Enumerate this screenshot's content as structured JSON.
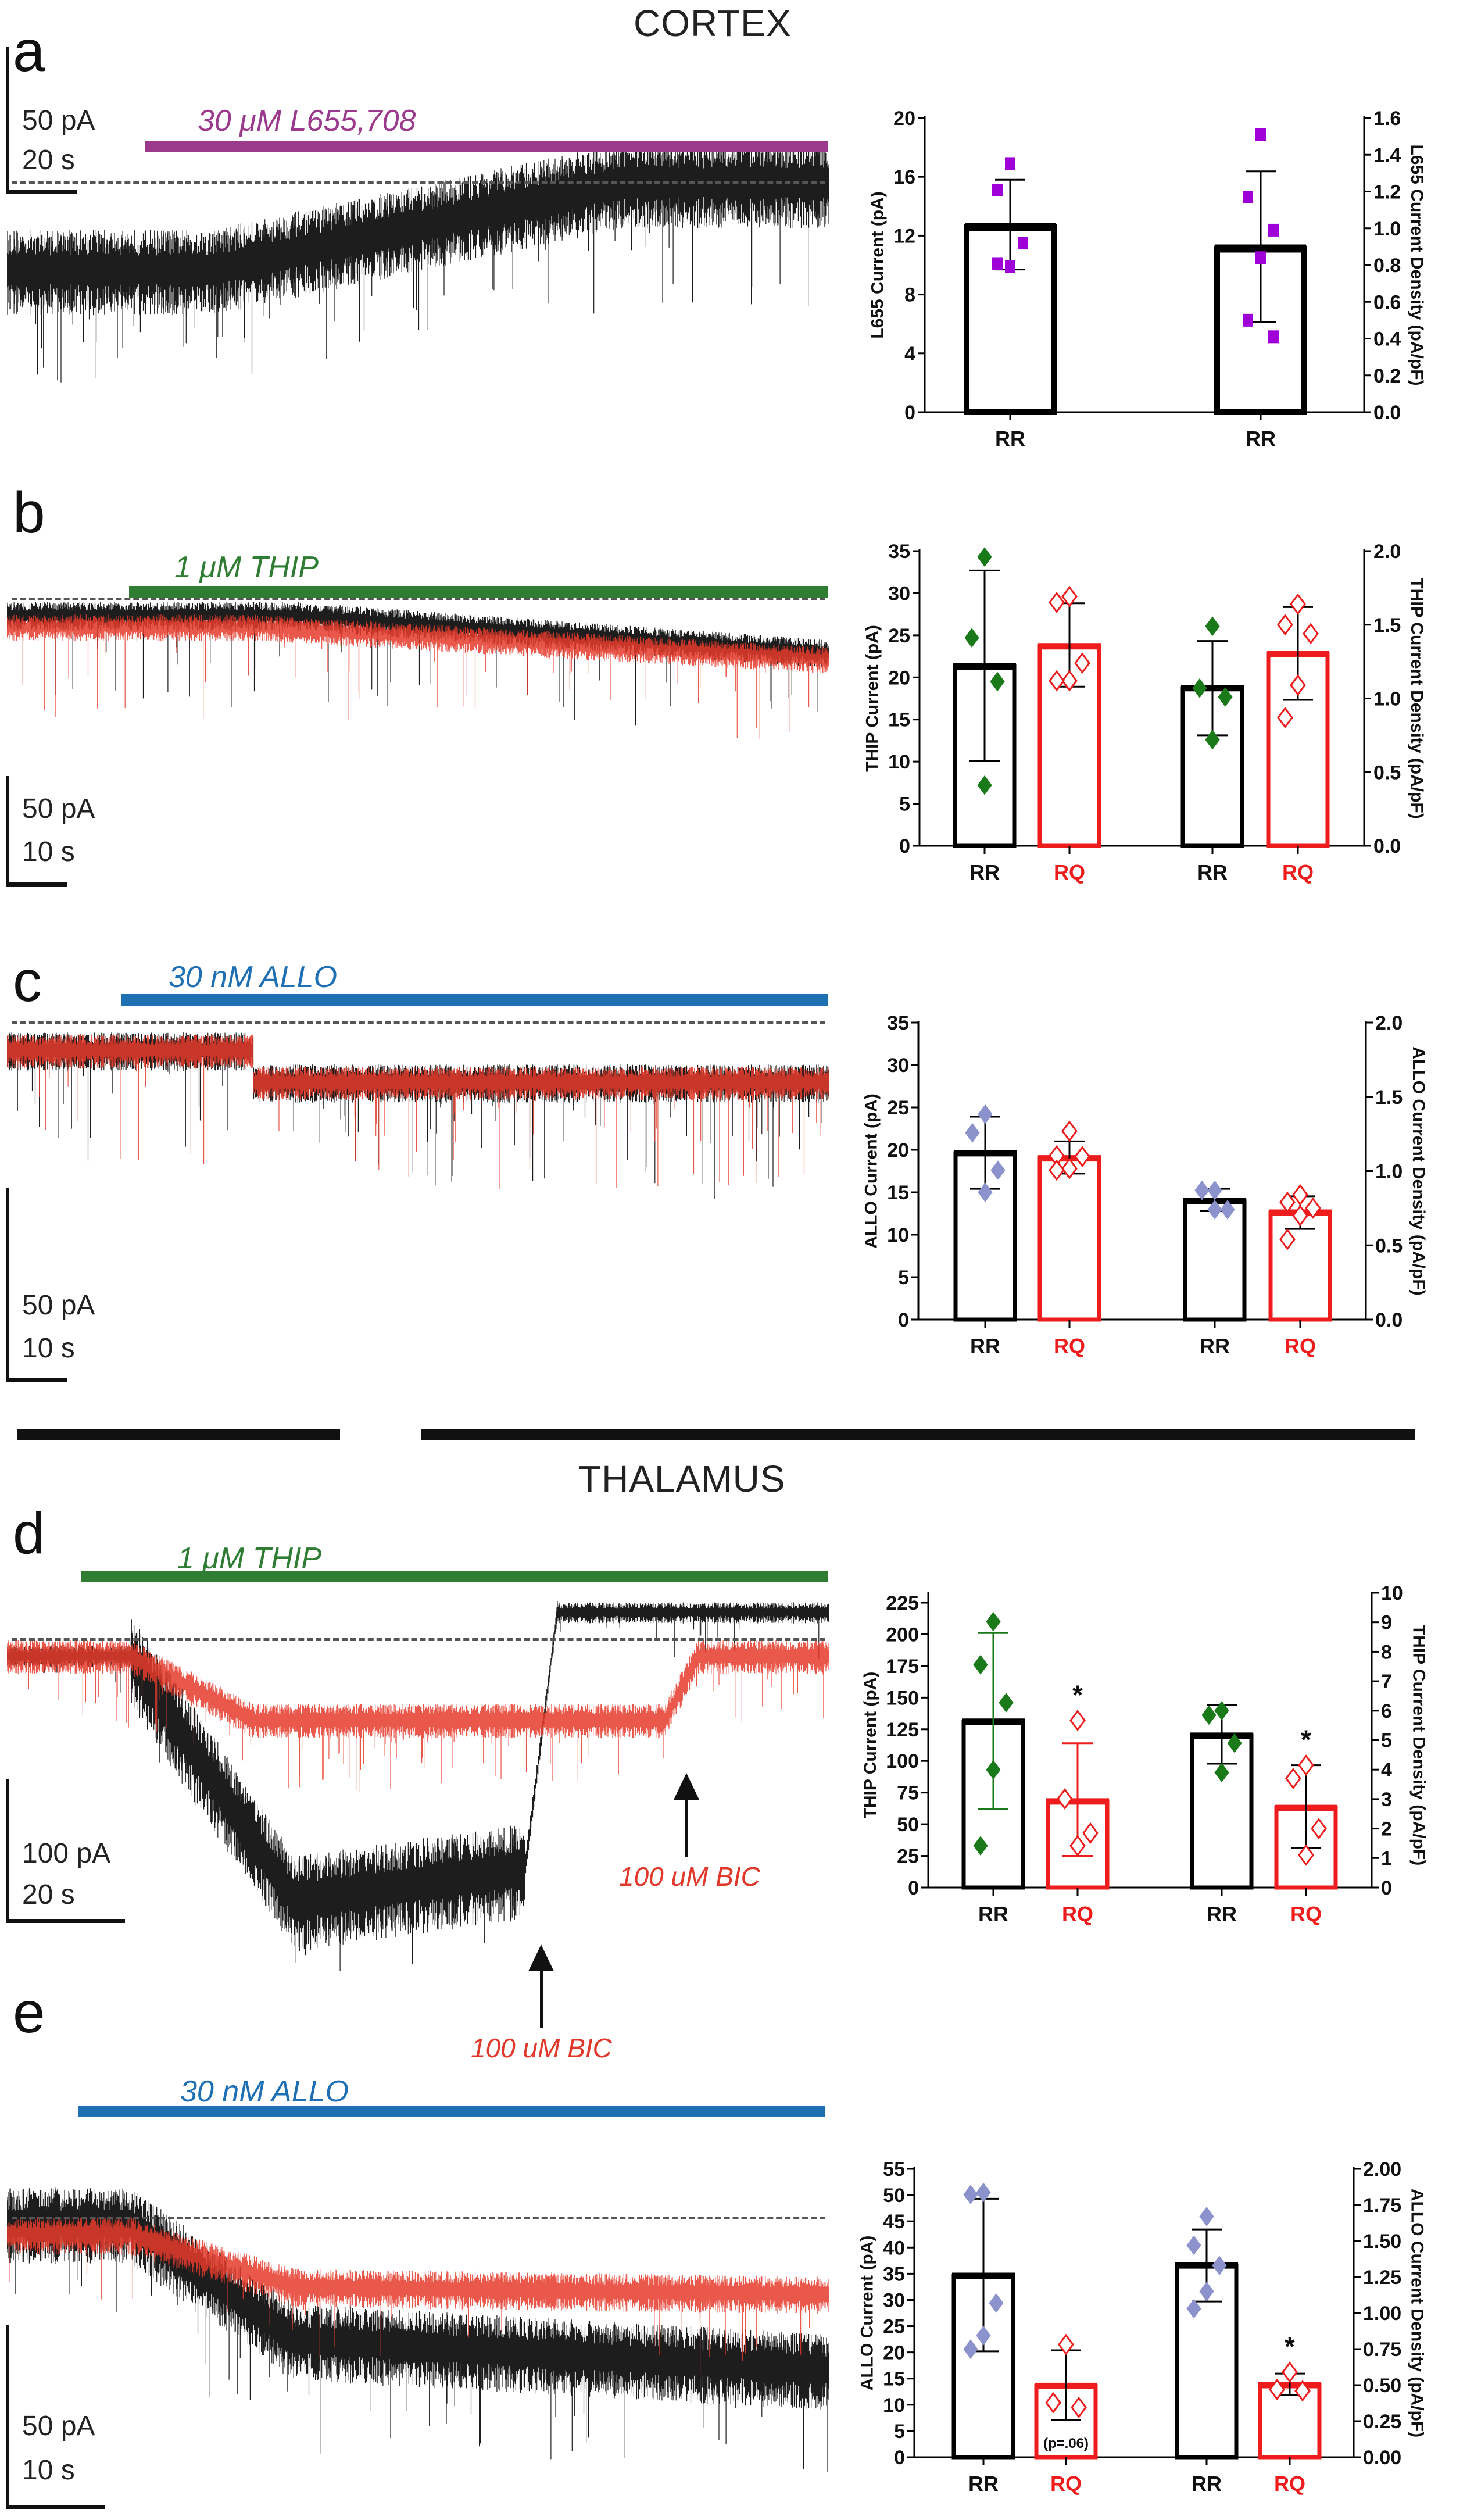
{
  "figure": {
    "sections": [
      {
        "title": "CORTEX"
      },
      {
        "title": "THALAMUS"
      }
    ],
    "traces": [
      {
        "letter": "a",
        "drug": "30 μM L655,708",
        "drug_color": "#9b3a8c",
        "scale_current": "50 pA",
        "scale_time": "20 s",
        "series_colors": [
          "#111111"
        ]
      },
      {
        "letter": "b",
        "drug": "1 μM THIP",
        "drug_color": "#2e7d32",
        "scale_current": "50 pA",
        "scale_time": "10 s",
        "series_colors": [
          "#111111",
          "#e53b2c"
        ]
      },
      {
        "letter": "c",
        "drug": "30 nM ALLO",
        "drug_color": "#1f6fb4",
        "scale_current": "50 pA",
        "scale_time": "10 s",
        "series_colors": [
          "#111111",
          "#e53b2c"
        ]
      },
      {
        "letter": "d",
        "drug": "1 μM THIP",
        "drug_color": "#2e7d32",
        "scale_current": "100 pA",
        "scale_time": "20 s",
        "series_colors": [
          "#111111",
          "#e53b2c"
        ],
        "annotations": [
          "100 uM BIC",
          "100 uM BIC"
        ]
      },
      {
        "letter": "e",
        "drug": "30 nM ALLO",
        "drug_color": "#1f6fb4",
        "scale_current": "50 pA",
        "scale_time": "10 s",
        "series_colors": [
          "#111111",
          "#e53b2c"
        ]
      }
    ]
  },
  "chart_data": [
    {
      "panel": "a",
      "type": "bar",
      "ylabel": "L655 Current (pA)",
      "y2label": "L655 Current Density (pA/pF)",
      "ylim": [
        0,
        20
      ],
      "yticks": [
        0,
        4,
        8,
        12,
        16,
        20
      ],
      "y2lim": [
        0,
        1.6
      ],
      "y2ticks": [
        "0.0",
        "0.2",
        "0.4",
        "0.6",
        "0.8",
        "1.0",
        "1.2",
        "1.4",
        "1.6"
      ],
      "categories": [
        "RR",
        "RR"
      ],
      "bars": [
        {
          "label": "RR",
          "axis": "left",
          "mean": 12.6,
          "err": [
            9.7,
            15.8
          ],
          "points": [
            16.9,
            15.1,
            11.5,
            9.9,
            10.1
          ],
          "color": "#000000",
          "marker": "square",
          "marker_color": "#a000d8",
          "filled": true
        },
        {
          "label": "RR",
          "axis": "right",
          "mean": 0.89,
          "err": [
            0.49,
            1.31
          ],
          "points": [
            1.51,
            1.17,
            0.99,
            0.84,
            0.5,
            0.41
          ],
          "color": "#000000",
          "marker": "square",
          "marker_color": "#a000d8",
          "filled": true
        }
      ]
    },
    {
      "panel": "b",
      "type": "bar",
      "ylabel": "THIP Current (pA)",
      "y2label": "THIP Current Density (pA/pF)",
      "ylim": [
        0,
        35
      ],
      "yticks": [
        0,
        5,
        10,
        15,
        20,
        25,
        30,
        35
      ],
      "y2lim": [
        0,
        2.0
      ],
      "y2ticks": [
        "0.0",
        "0.5",
        "1.0",
        "1.5",
        "2.0"
      ],
      "categories": [
        "RR",
        "RQ",
        "RR",
        "RQ"
      ],
      "bars": [
        {
          "label": "RR",
          "axis": "left",
          "mean": 21.3,
          "err": [
            10.1,
            32.7
          ],
          "points": [
            34.3,
            24.7,
            19.5,
            7.2
          ],
          "color": "#000000",
          "marker": "diamond",
          "marker_color": "#1a7a1a",
          "filled": true
        },
        {
          "label": "RQ",
          "axis": "left",
          "mean": 23.7,
          "err": [
            18.9,
            28.8
          ],
          "points": [
            29.6,
            28.9,
            21.7,
            19.6,
            19.6
          ],
          "color": "#ee1c1c",
          "marker": "diamond",
          "marker_color": "#ee1c1c",
          "filled": false
        },
        {
          "label": "RR",
          "axis": "right",
          "mean": 1.07,
          "err": [
            0.75,
            1.39
          ],
          "points": [
            1.49,
            1.07,
            1.01,
            0.72
          ],
          "color": "#000000",
          "marker": "diamond",
          "marker_color": "#1a7a1a",
          "filled": true
        },
        {
          "label": "RQ",
          "axis": "right",
          "mean": 1.3,
          "err": [
            0.99,
            1.62
          ],
          "points": [
            1.64,
            1.5,
            1.44,
            1.09,
            0.87
          ],
          "color": "#ee1c1c",
          "marker": "diamond",
          "marker_color": "#ee1c1c",
          "filled": false
        }
      ]
    },
    {
      "panel": "c",
      "type": "bar",
      "ylabel": "ALLO Current (pA)",
      "y2label": "ALLO Current Density (pA/pF)",
      "ylim": [
        0,
        35
      ],
      "yticks": [
        0,
        5,
        10,
        15,
        20,
        25,
        30,
        35
      ],
      "y2lim": [
        0,
        2.0
      ],
      "y2ticks": [
        "0.0",
        "0.5",
        "1.0",
        "1.5",
        "2.0"
      ],
      "categories": [
        "RR",
        "RQ",
        "RR",
        "RQ"
      ],
      "bars": [
        {
          "label": "RR",
          "axis": "left",
          "mean": 19.6,
          "err": [
            15.4,
            23.9
          ],
          "points": [
            24.2,
            22.0,
            17.6,
            15.0
          ],
          "color": "#000000",
          "marker": "diamond",
          "marker_color": "#8c93cc",
          "filled": true
        },
        {
          "label": "RQ",
          "axis": "left",
          "mean": 19.0,
          "err": [
            17.2,
            21.0
          ],
          "points": [
            22.2,
            19.3,
            19.2,
            17.8,
            17.6
          ],
          "color": "#ee1c1c",
          "marker": "diamond",
          "marker_color": "#ee1c1c",
          "filled": false
        },
        {
          "label": "RR",
          "axis": "right",
          "mean": 0.8,
          "err": [
            0.73,
            0.88
          ],
          "points": [
            0.87,
            0.87,
            0.74,
            0.74
          ],
          "color": "#000000",
          "marker": "diamond",
          "marker_color": "#8c93cc",
          "filled": true
        },
        {
          "label": "RQ",
          "axis": "right",
          "mean": 0.72,
          "err": [
            0.61,
            0.83
          ],
          "points": [
            0.84,
            0.79,
            0.75,
            0.7,
            0.54
          ],
          "color": "#ee1c1c",
          "marker": "diamond",
          "marker_color": "#ee1c1c",
          "filled": false
        }
      ]
    },
    {
      "panel": "d",
      "type": "bar",
      "ylabel": "THIP Current (pA)",
      "y2label": "THIP Current Density (pA/pF)",
      "ylim": [
        0,
        225
      ],
      "yticks": [
        0,
        25,
        50,
        75,
        100,
        125,
        150,
        175,
        200,
        225
      ],
      "y2lim": [
        0,
        10
      ],
      "y2ticks": [
        "0",
        "1",
        "2",
        "3",
        "4",
        "5",
        "6",
        "7",
        "8",
        "9",
        "10"
      ],
      "categories": [
        "RR",
        "RQ",
        "RR",
        "RQ"
      ],
      "bars": [
        {
          "label": "RR",
          "axis": "left",
          "mean": 131,
          "err": [
            62,
            201
          ],
          "points": [
            210,
            176,
            146,
            93,
            33
          ],
          "color": "#000000",
          "marker": "diamond",
          "marker_color": "#1a7a1a",
          "filled": true,
          "err_color": "#1a7a1a"
        },
        {
          "label": "RQ",
          "axis": "left",
          "mean": 68,
          "err": [
            25,
            114
          ],
          "points": [
            132,
            70,
            43,
            33
          ],
          "color": "#ee1c1c",
          "marker": "diamond",
          "marker_color": "#ee1c1c",
          "filled": false,
          "err_color": "#ee1c1c",
          "annotation": "*"
        },
        {
          "label": "RR",
          "axis": "right",
          "mean": 5.15,
          "err": [
            4.2,
            6.2
          ],
          "points": [
            6.0,
            5.85,
            4.9,
            3.9
          ],
          "color": "#000000",
          "marker": "diamond",
          "marker_color": "#1a7a1a",
          "filled": true
        },
        {
          "label": "RQ",
          "axis": "right",
          "mean": 2.7,
          "err": [
            1.35,
            4.15
          ],
          "points": [
            4.15,
            3.7,
            2.0,
            1.1
          ],
          "color": "#ee1c1c",
          "marker": "diamond",
          "marker_color": "#ee1c1c",
          "filled": false,
          "annotation": "*"
        }
      ]
    },
    {
      "panel": "e",
      "type": "bar",
      "ylabel": "ALLO Current (pA)",
      "y2label": "ALLO Current Density (pA/pF)",
      "ylim": [
        0,
        55
      ],
      "yticks": [
        0,
        5,
        10,
        15,
        20,
        25,
        30,
        35,
        40,
        45,
        50,
        55
      ],
      "y2lim": [
        0,
        2.0
      ],
      "y2ticks": [
        "0.00",
        "0.25",
        "0.50",
        "0.75",
        "1.00",
        "1.25",
        "1.50",
        "1.75",
        "2.00"
      ],
      "categories": [
        "RR",
        "RQ",
        "RR",
        "RQ"
      ],
      "bars": [
        {
          "label": "RR",
          "axis": "left",
          "mean": 34.6,
          "err": [
            20.2,
            49.3
          ],
          "points": [
            50.5,
            50.1,
            29.4,
            23.2,
            20.6
          ],
          "color": "#000000",
          "marker": "diamond",
          "marker_color": "#8c93cc",
          "filled": true
        },
        {
          "label": "RQ",
          "axis": "left",
          "mean": 13.6,
          "err": [
            7.1,
            20.4
          ],
          "points": [
            21.5,
            10.4,
            9.5
          ],
          "color": "#ee1c1c",
          "marker": "diamond",
          "marker_color": "#ee1c1c",
          "filled": false,
          "inner_annotation": "(p=.06)"
        },
        {
          "label": "RR",
          "axis": "right",
          "mean": 1.33,
          "err": [
            1.08,
            1.58
          ],
          "points": [
            1.67,
            1.47,
            1.33,
            1.15,
            1.03
          ],
          "color": "#000000",
          "marker": "diamond",
          "marker_color": "#8c93cc",
          "filled": true
        },
        {
          "label": "RQ",
          "axis": "right",
          "mean": 0.5,
          "err": [
            0.43,
            0.58
          ],
          "points": [
            0.59,
            0.47,
            0.46
          ],
          "color": "#ee1c1c",
          "marker": "diamond",
          "marker_color": "#ee1c1c",
          "filled": false,
          "annotation": "*"
        }
      ]
    }
  ]
}
